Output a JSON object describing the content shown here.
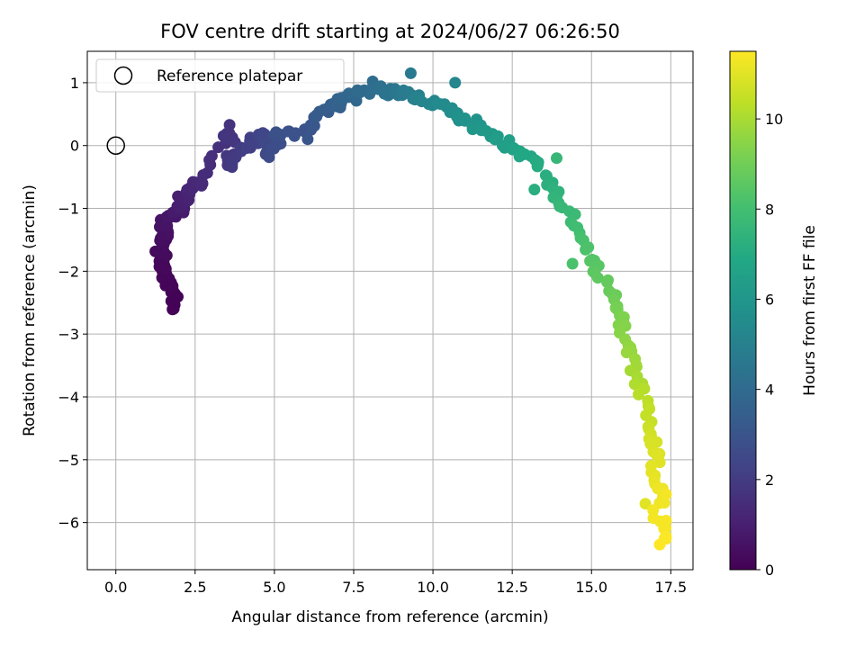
{
  "chart_data": {
    "type": "scatter",
    "title": "FOV centre drift starting at 2024/06/27 06:26:50",
    "xlabel": "Angular distance from reference (arcmin)",
    "ylabel": "Rotation from reference (arcmin)",
    "xlim": [
      -0.9,
      18.2
    ],
    "ylim": [
      -6.75,
      1.5
    ],
    "xticks": [
      0.0,
      2.5,
      5.0,
      7.5,
      10.0,
      12.5,
      15.0,
      17.5
    ],
    "xtick_labels": [
      "0.0",
      "2.5",
      "5.0",
      "7.5",
      "10.0",
      "12.5",
      "15.0",
      "17.5"
    ],
    "yticks": [
      1,
      0,
      -1,
      -2,
      -3,
      -4,
      -5,
      -6
    ],
    "ytick_labels": [
      "1",
      "0",
      "−1",
      "−2",
      "−3",
      "−4",
      "−5",
      "−6"
    ],
    "grid": true,
    "legend": {
      "position": "top-left",
      "entries": [
        "Reference platepar"
      ]
    },
    "reference_point": {
      "x": 0.0,
      "y": 0.0
    },
    "colorbar": {
      "label": "Hours from first FF file",
      "colormap": "viridis",
      "range": [
        0,
        11.5
      ],
      "ticks": [
        0,
        2,
        4,
        6,
        8,
        10
      ],
      "tick_labels": [
        "0",
        "2",
        "4",
        "6",
        "8",
        "10"
      ]
    },
    "anchors": [
      [
        1.77,
        -2.67,
        0.05
      ],
      [
        1.85,
        -2.27,
        0.1
      ],
      [
        1.6,
        -2.22,
        0.15
      ],
      [
        1.55,
        -2.0,
        0.2
      ],
      [
        1.4,
        -1.82,
        0.25
      ],
      [
        1.45,
        -1.6,
        0.35
      ],
      [
        1.5,
        -1.4,
        0.45
      ],
      [
        1.65,
        -1.2,
        0.6
      ],
      [
        1.9,
        -1.05,
        0.8
      ],
      [
        2.1,
        -0.9,
        1.0
      ],
      [
        2.4,
        -0.72,
        1.2
      ],
      [
        2.7,
        -0.62,
        1.4
      ],
      [
        3.5,
        0.32,
        1.7
      ],
      [
        3.6,
        -0.32,
        1.9
      ],
      [
        4.2,
        0.05,
        2.1
      ],
      [
        4.7,
        0.2,
        2.4
      ],
      [
        4.85,
        -0.15,
        2.6
      ],
      [
        5.1,
        0.18,
        2.8
      ],
      [
        6.1,
        0.25,
        3.0
      ],
      [
        6.5,
        0.55,
        3.3
      ],
      [
        7.0,
        0.68,
        3.6
      ],
      [
        7.6,
        0.85,
        3.9
      ],
      [
        8.3,
        0.9,
        4.2
      ],
      [
        9.0,
        0.85,
        4.6
      ],
      [
        9.5,
        0.75,
        5.0
      ],
      [
        10.2,
        0.65,
        5.4
      ],
      [
        11.0,
        0.4,
        5.8
      ],
      [
        11.8,
        0.2,
        6.2
      ],
      [
        12.6,
        -0.05,
        6.6
      ],
      [
        13.3,
        -0.3,
        7.0
      ],
      [
        14.0,
        -0.85,
        7.5
      ],
      [
        14.6,
        -1.4,
        8.0
      ],
      [
        15.2,
        -1.95,
        8.5
      ],
      [
        15.7,
        -2.5,
        9.0
      ],
      [
        16.1,
        -3.05,
        9.5
      ],
      [
        16.5,
        -3.7,
        10.0
      ],
      [
        16.8,
        -4.3,
        10.5
      ],
      [
        17.0,
        -4.9,
        10.9
      ],
      [
        17.1,
        -5.5,
        11.2
      ],
      [
        17.25,
        -6.25,
        11.45
      ]
    ],
    "outliers": [
      [
        1.75,
        -2.27,
        0.12
      ],
      [
        6.05,
        0.1,
        3.05
      ],
      [
        8.1,
        1.02,
        4.1
      ],
      [
        9.3,
        1.15,
        4.7
      ],
      [
        10.7,
        1.0,
        5.3
      ],
      [
        13.2,
        -0.7,
        7.2
      ],
      [
        13.9,
        -0.2,
        7.6
      ],
      [
        14.4,
        -1.88,
        8.2
      ],
      [
        16.7,
        -5.7,
        11.0
      ],
      [
        16.95,
        -5.93,
        11.3
      ],
      [
        17.35,
        -5.55,
        11.35
      ],
      [
        17.35,
        -5.97,
        11.4
      ],
      [
        17.35,
        -6.22,
        11.45
      ],
      [
        17.15,
        -6.35,
        11.5
      ]
    ],
    "n_points": 360
  }
}
